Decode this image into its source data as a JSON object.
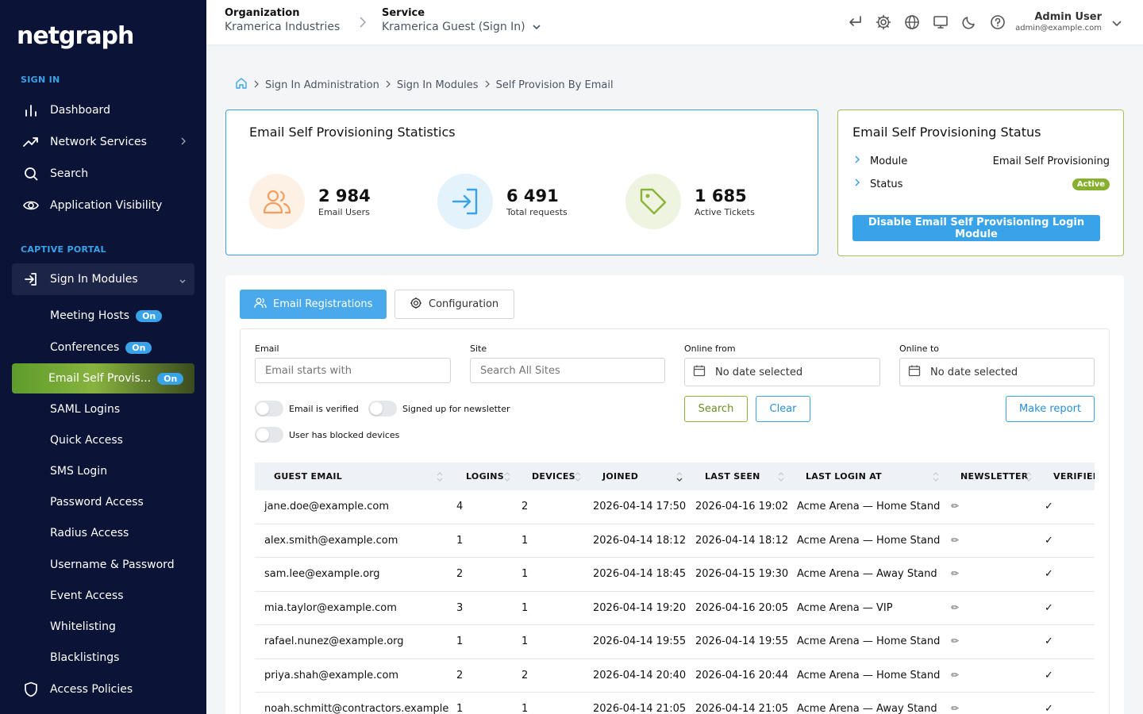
{
  "sidebar": {
    "logo": "netgraph",
    "sections": [
      {
        "label": "SIGN IN"
      },
      {
        "label": "CAPTIVE PORTAL"
      }
    ],
    "items": [
      {
        "label": "Dashboard",
        "icon": "bar-chart-icon"
      },
      {
        "label": "Network Services",
        "icon": "trend-icon"
      },
      {
        "label": "Search",
        "icon": "search-icon"
      },
      {
        "label": "Application Visibility",
        "icon": "eye-icon"
      }
    ],
    "sign_in_modules": {
      "label": "Sign In Modules",
      "icon": "sign-in-icon"
    },
    "sub_items": [
      {
        "label": "Meeting Hosts",
        "badge": "On"
      },
      {
        "label": "Conferences",
        "badge": "On"
      },
      {
        "label": "Email Self Provis...",
        "badge": "On"
      },
      {
        "label": "SAML Logins"
      },
      {
        "label": "Quick Access"
      },
      {
        "label": "SMS Login"
      },
      {
        "label": "Password Access"
      },
      {
        "label": "Radius Access"
      },
      {
        "label": "Username & Password"
      },
      {
        "label": "Event Access"
      },
      {
        "label": "Whitelisting"
      },
      {
        "label": "Blacklistings"
      }
    ],
    "access_policies": {
      "label": "Access Policies",
      "icon": "shield-icon"
    }
  },
  "header": {
    "org_label": "Organization",
    "org_value": "Kramerica Industries",
    "service_label": "Service",
    "service_value": "Kramerica Guest (Sign In)",
    "user_name": "Admin User",
    "user_email": "admin@example.com"
  },
  "breadcrumb": [
    "Sign In Administration",
    "Sign In Modules",
    "Self Provision By Email"
  ],
  "stats": {
    "title": "Email Self Provisioning Statistics",
    "items": [
      {
        "value": "2 984",
        "label": "Email Users",
        "color": "#f59e5b",
        "bg": "#fdf1e6"
      },
      {
        "value": "6 491",
        "label": "Total requests",
        "color": "#38a3e8",
        "bg": "#e4f2fc"
      },
      {
        "value": "1 685",
        "label": "Active Tickets",
        "color": "#8bb33a",
        "bg": "#eef4df"
      }
    ]
  },
  "status": {
    "title": "Email Self Provisioning Status",
    "module_key": "Module",
    "module_value": "Email Self Provisioning",
    "status_key": "Status",
    "status_value": "Active",
    "button": "Disable Email Self Provisioning Login Module"
  },
  "tabs": {
    "registrations": "Email Registrations",
    "configuration": "Configuration"
  },
  "filters": {
    "email_label": "Email",
    "email_placeholder": "Email starts with",
    "site_label": "Site",
    "site_placeholder": "Search All Sites",
    "from_label": "Online from",
    "from_value": "No date selected",
    "to_label": "Online to",
    "to_value": "No date selected",
    "toggle_verified": "Email is verified",
    "toggle_newsletter": "Signed up for newsletter",
    "toggle_blocked": "User has blocked devices",
    "search": "Search",
    "clear": "Clear",
    "report": "Make report"
  },
  "table": {
    "columns": [
      "GUEST EMAIL",
      "LOGINS",
      "DEVICES",
      "JOINED",
      "LAST SEEN",
      "LAST LOGIN AT",
      "NEWSLETTER",
      "VERIFIED"
    ],
    "rows": [
      {
        "email": "jane.doe@example.com",
        "logins": "4",
        "devices": "2",
        "joined": "2026-04-14 17:50",
        "last_seen": "2026-04-16 19:02",
        "last_login": "Acme Arena — Home Stand",
        "newsletter": "✏",
        "verified": "✓"
      },
      {
        "email": "alex.smith@example.com",
        "logins": "1",
        "devices": "1",
        "joined": "2026-04-14 18:12",
        "last_seen": "2026-04-14 18:12",
        "last_login": "Acme Arena — Home Stand",
        "newsletter": "✏",
        "verified": "✓"
      },
      {
        "email": "sam.lee@example.org",
        "logins": "2",
        "devices": "1",
        "joined": "2026-04-14 18:45",
        "last_seen": "2026-04-15 19:30",
        "last_login": "Acme Arena — Away Stand",
        "newsletter": "✏",
        "verified": "✓"
      },
      {
        "email": "mia.taylor@example.com",
        "logins": "3",
        "devices": "1",
        "joined": "2026-04-14 19:20",
        "last_seen": "2026-04-16 20:05",
        "last_login": "Acme Arena — VIP",
        "newsletter": "✏",
        "verified": "✓"
      },
      {
        "email": "rafael.nunez@example.org",
        "logins": "1",
        "devices": "1",
        "joined": "2026-04-14 19:55",
        "last_seen": "2026-04-14 19:55",
        "last_login": "Acme Arena — Home Stand",
        "newsletter": "✏",
        "verified": "✓"
      },
      {
        "email": "priya.shah@example.com",
        "logins": "2",
        "devices": "2",
        "joined": "2026-04-14 20:40",
        "last_seen": "2026-04-16 20:44",
        "last_login": "Acme Arena — Home Stand",
        "newsletter": "✏",
        "verified": "✓"
      },
      {
        "email": "noah.schmitt@contractors.example",
        "logins": "1",
        "devices": "1",
        "joined": "2026-04-14 21:05",
        "last_seen": "2026-04-14 21:05",
        "last_login": "Acme Arena — Away Stand",
        "newsletter": "✏",
        "verified": "✓"
      }
    ]
  }
}
